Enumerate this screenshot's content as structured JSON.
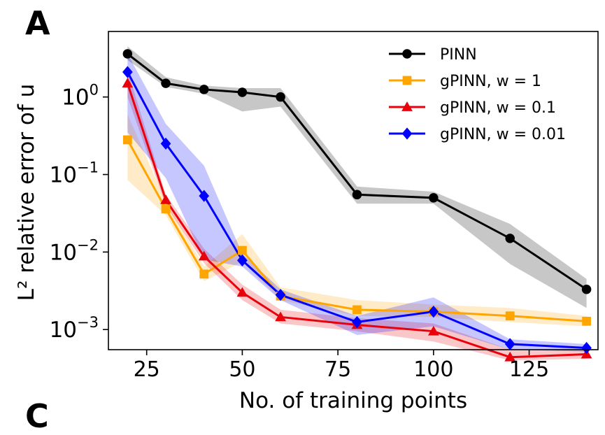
{
  "panel_labels": {
    "main": "A",
    "next": "C"
  },
  "chart_data": {
    "type": "line",
    "xlabel": "No. of training points",
    "ylabel": "L² relative error of u",
    "x_scale": "linear",
    "y_scale": "log",
    "xlim": [
      15,
      143
    ],
    "ylim": [
      0.00055,
      7
    ],
    "x_ticks": [
      25,
      50,
      75,
      100,
      125
    ],
    "y_ticks": [
      {
        "value": 1,
        "base": "10",
        "exp": "0"
      },
      {
        "value": 0.1,
        "base": "10",
        "exp": "−1"
      },
      {
        "value": 0.01,
        "base": "10",
        "exp": "−2"
      },
      {
        "value": 0.001,
        "base": "10",
        "exp": "−3"
      }
    ],
    "grid": false,
    "legend_position": "top-right",
    "series": [
      {
        "name": "PINN",
        "color": "#000000",
        "marker": "circle",
        "x": [
          20,
          30,
          40,
          50,
          60,
          80,
          100,
          120,
          140
        ],
        "y": [
          3.6,
          1.5,
          1.25,
          1.15,
          1.0,
          0.055,
          0.05,
          0.015,
          0.0033
        ],
        "y_low": [
          3.0,
          1.35,
          1.1,
          0.65,
          0.75,
          0.042,
          0.042,
          0.007,
          0.0019
        ],
        "y_high": [
          4.5,
          1.8,
          1.4,
          1.3,
          1.3,
          0.07,
          0.06,
          0.023,
          0.0045
        ]
      },
      {
        "name": "gPINN, w = 1",
        "color": "#FFA500",
        "marker": "square",
        "x": [
          20,
          30,
          40,
          50,
          60,
          80,
          100,
          120,
          140
        ],
        "y": [
          0.28,
          0.036,
          0.0052,
          0.0105,
          0.0027,
          0.0018,
          0.0017,
          0.0015,
          0.00128
        ],
        "y_low": [
          0.085,
          0.03,
          0.0042,
          0.0075,
          0.0024,
          0.0015,
          0.00145,
          0.00125,
          0.0011
        ],
        "y_high": [
          0.6,
          0.045,
          0.0065,
          0.017,
          0.0035,
          0.0024,
          0.0021,
          0.0019,
          0.0015
        ]
      },
      {
        "name": "gPINN, w = 0.1",
        "color": "#E8000B",
        "marker": "triangle",
        "x": [
          20,
          30,
          40,
          50,
          60,
          80,
          100,
          120,
          140
        ],
        "y": [
          1.5,
          0.047,
          0.0088,
          0.003,
          0.00145,
          0.00115,
          0.00095,
          0.00044,
          0.00048
        ],
        "y_low": [
          1.0,
          0.04,
          0.0072,
          0.0024,
          0.0012,
          0.00095,
          0.0007,
          0.0004,
          0.00042
        ],
        "y_high": [
          2.2,
          0.055,
          0.011,
          0.0038,
          0.0018,
          0.0014,
          0.0012,
          0.00055,
          0.00056
        ]
      },
      {
        "name": "gPINN, w = 0.01",
        "color": "#0000FF",
        "marker": "diamond",
        "x": [
          20,
          30,
          40,
          50,
          60,
          80,
          100,
          120,
          140
        ],
        "y": [
          2.1,
          0.25,
          0.053,
          0.0078,
          0.0028,
          0.00125,
          0.0017,
          0.00065,
          0.00058
        ],
        "y_low": [
          0.35,
          0.09,
          0.008,
          0.0065,
          0.0024,
          0.00085,
          0.0011,
          0.00055,
          0.00052
        ],
        "y_high": [
          3.6,
          0.45,
          0.13,
          0.0095,
          0.0033,
          0.0015,
          0.0026,
          0.00075,
          0.00065
        ]
      }
    ]
  }
}
